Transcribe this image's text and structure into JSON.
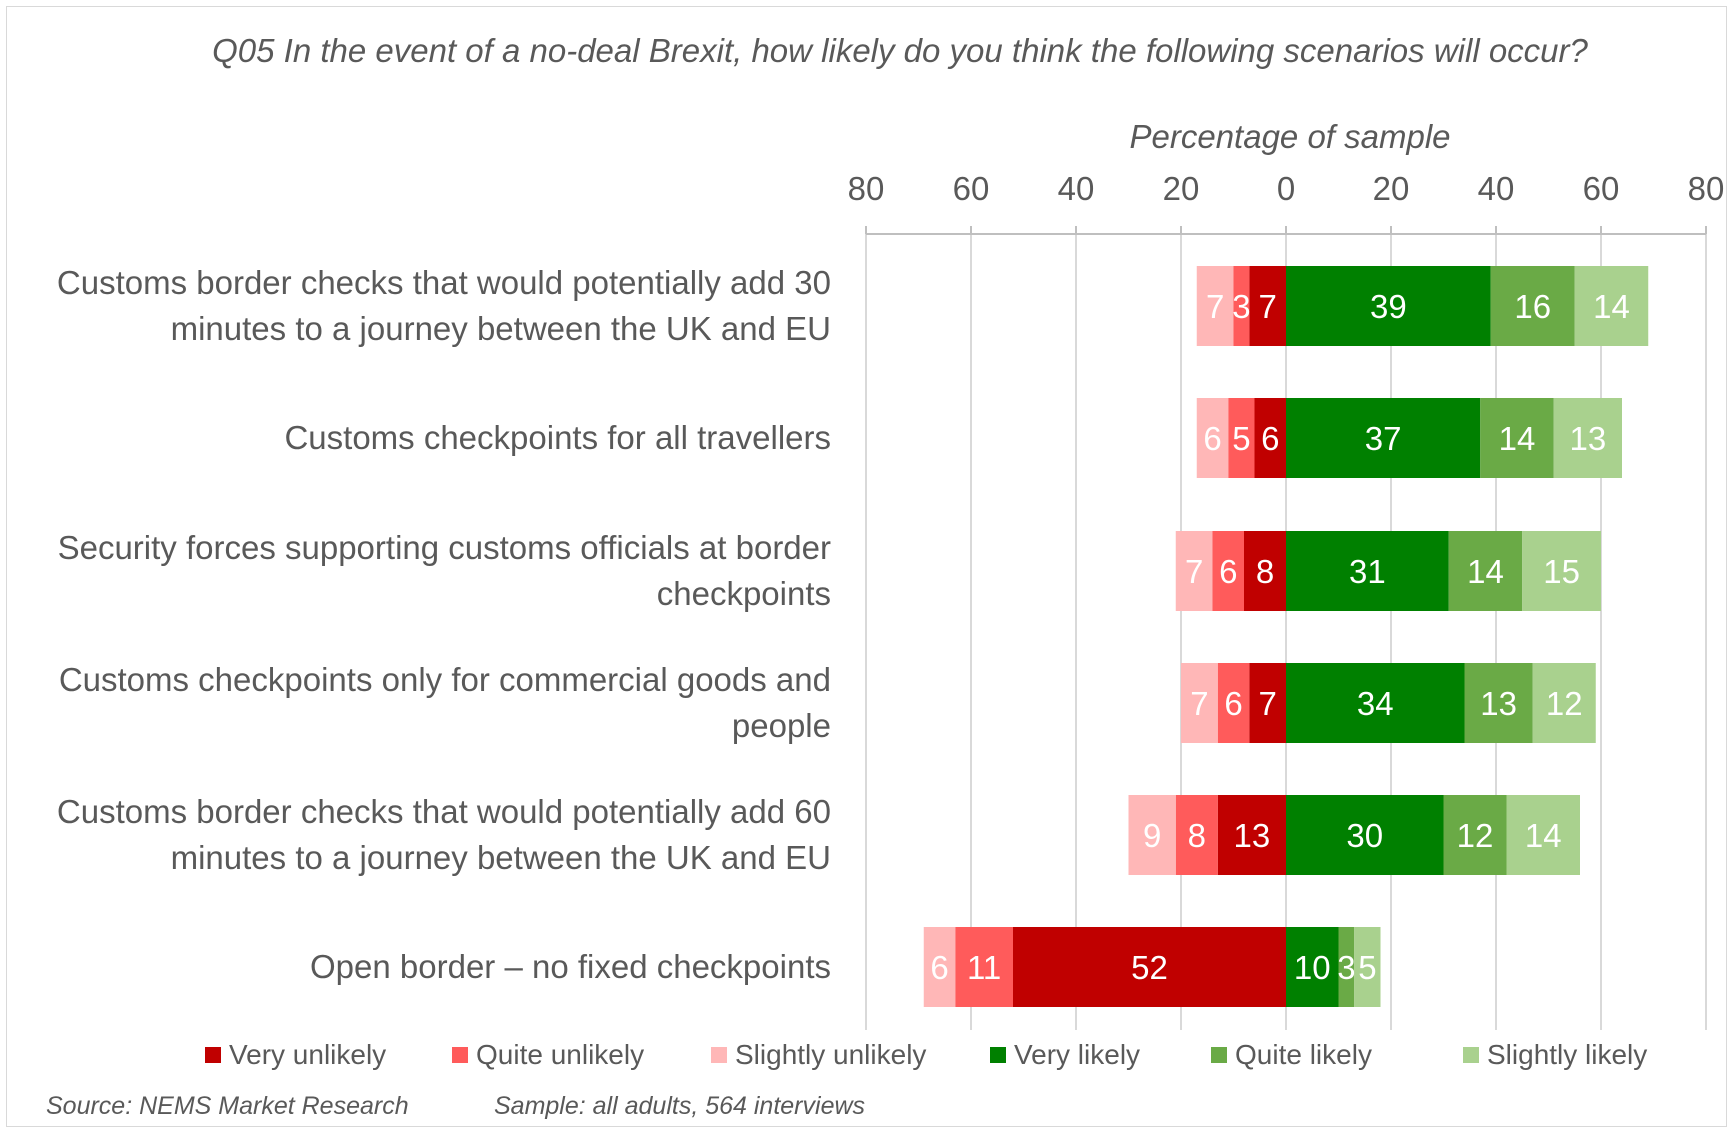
{
  "chart_data": {
    "type": "bar",
    "orientation": "horizontal",
    "stacked": "diverging",
    "title": "Q05 In the event of a no-deal Brexit, how likely do you think the following scenarios will occur?",
    "xlabel": "Percentage of sample",
    "xlim": [
      -80,
      80
    ],
    "xticks": [
      "80",
      "60",
      "40",
      "20",
      "0",
      "20",
      "40",
      "60",
      "80"
    ],
    "grid": true,
    "legend_position": "bottom",
    "categories": [
      [
        "Customs border checks that would potentially add 30",
        "minutes to a journey between the UK and EU"
      ],
      [
        "Customs checkpoints for all travellers"
      ],
      [
        "Security forces supporting customs officials at border",
        "checkpoints"
      ],
      [
        "Customs checkpoints only for commercial goods and",
        "people"
      ],
      [
        "Customs border checks that would potentially add 60",
        "minutes to a journey between the UK and EU"
      ],
      [
        "Open border – no fixed checkpoints"
      ]
    ],
    "series": [
      {
        "name": "Very unlikely",
        "side": "negative",
        "color": "#c00000",
        "values": [
          7,
          6,
          8,
          7,
          13,
          52
        ]
      },
      {
        "name": "Quite unlikely",
        "side": "negative",
        "color": "#ff5b5b",
        "values": [
          3,
          5,
          6,
          6,
          8,
          11
        ]
      },
      {
        "name": "Slightly unlikely",
        "side": "negative",
        "color": "#ffb7b7",
        "values": [
          7,
          6,
          7,
          7,
          9,
          6
        ]
      },
      {
        "name": "Very likely",
        "side": "positive",
        "color": "#008000",
        "values": [
          39,
          37,
          31,
          34,
          30,
          10
        ]
      },
      {
        "name": "Quite likely",
        "side": "positive",
        "color": "#6aaa46",
        "values": [
          16,
          14,
          14,
          13,
          12,
          3
        ]
      },
      {
        "name": "Slightly likely",
        "side": "positive",
        "color": "#a9d18e",
        "values": [
          14,
          13,
          15,
          12,
          14,
          5
        ]
      }
    ]
  },
  "footer": {
    "source": "Source: NEMS Market Research",
    "sample": "Sample: all adults, 564 interviews"
  }
}
